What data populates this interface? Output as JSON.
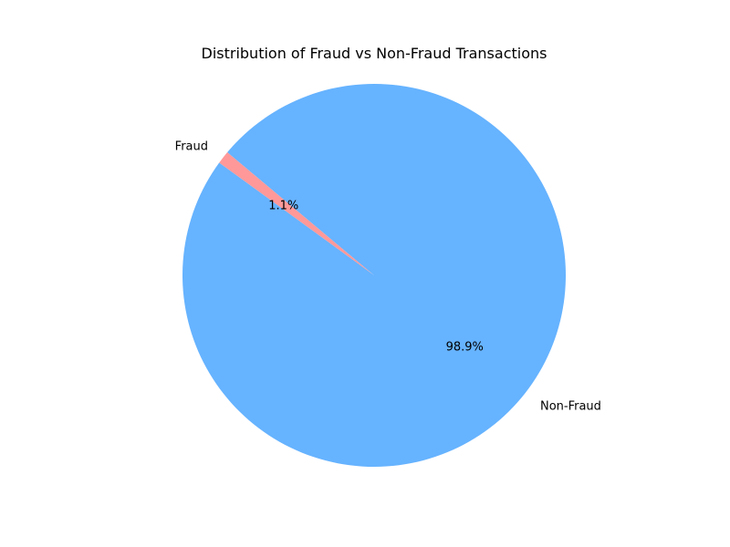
{
  "chart_data": {
    "type": "pie",
    "title": "Distribution of Fraud vs Non-Fraud Transactions",
    "slices": [
      {
        "label": "Fraud",
        "value": 1.1,
        "pct_label": "1.1%",
        "color": "#ff9999"
      },
      {
        "label": "Non-Fraud",
        "value": 98.9,
        "pct_label": "98.9%",
        "color": "#66b3ff"
      }
    ],
    "legend": "none"
  }
}
